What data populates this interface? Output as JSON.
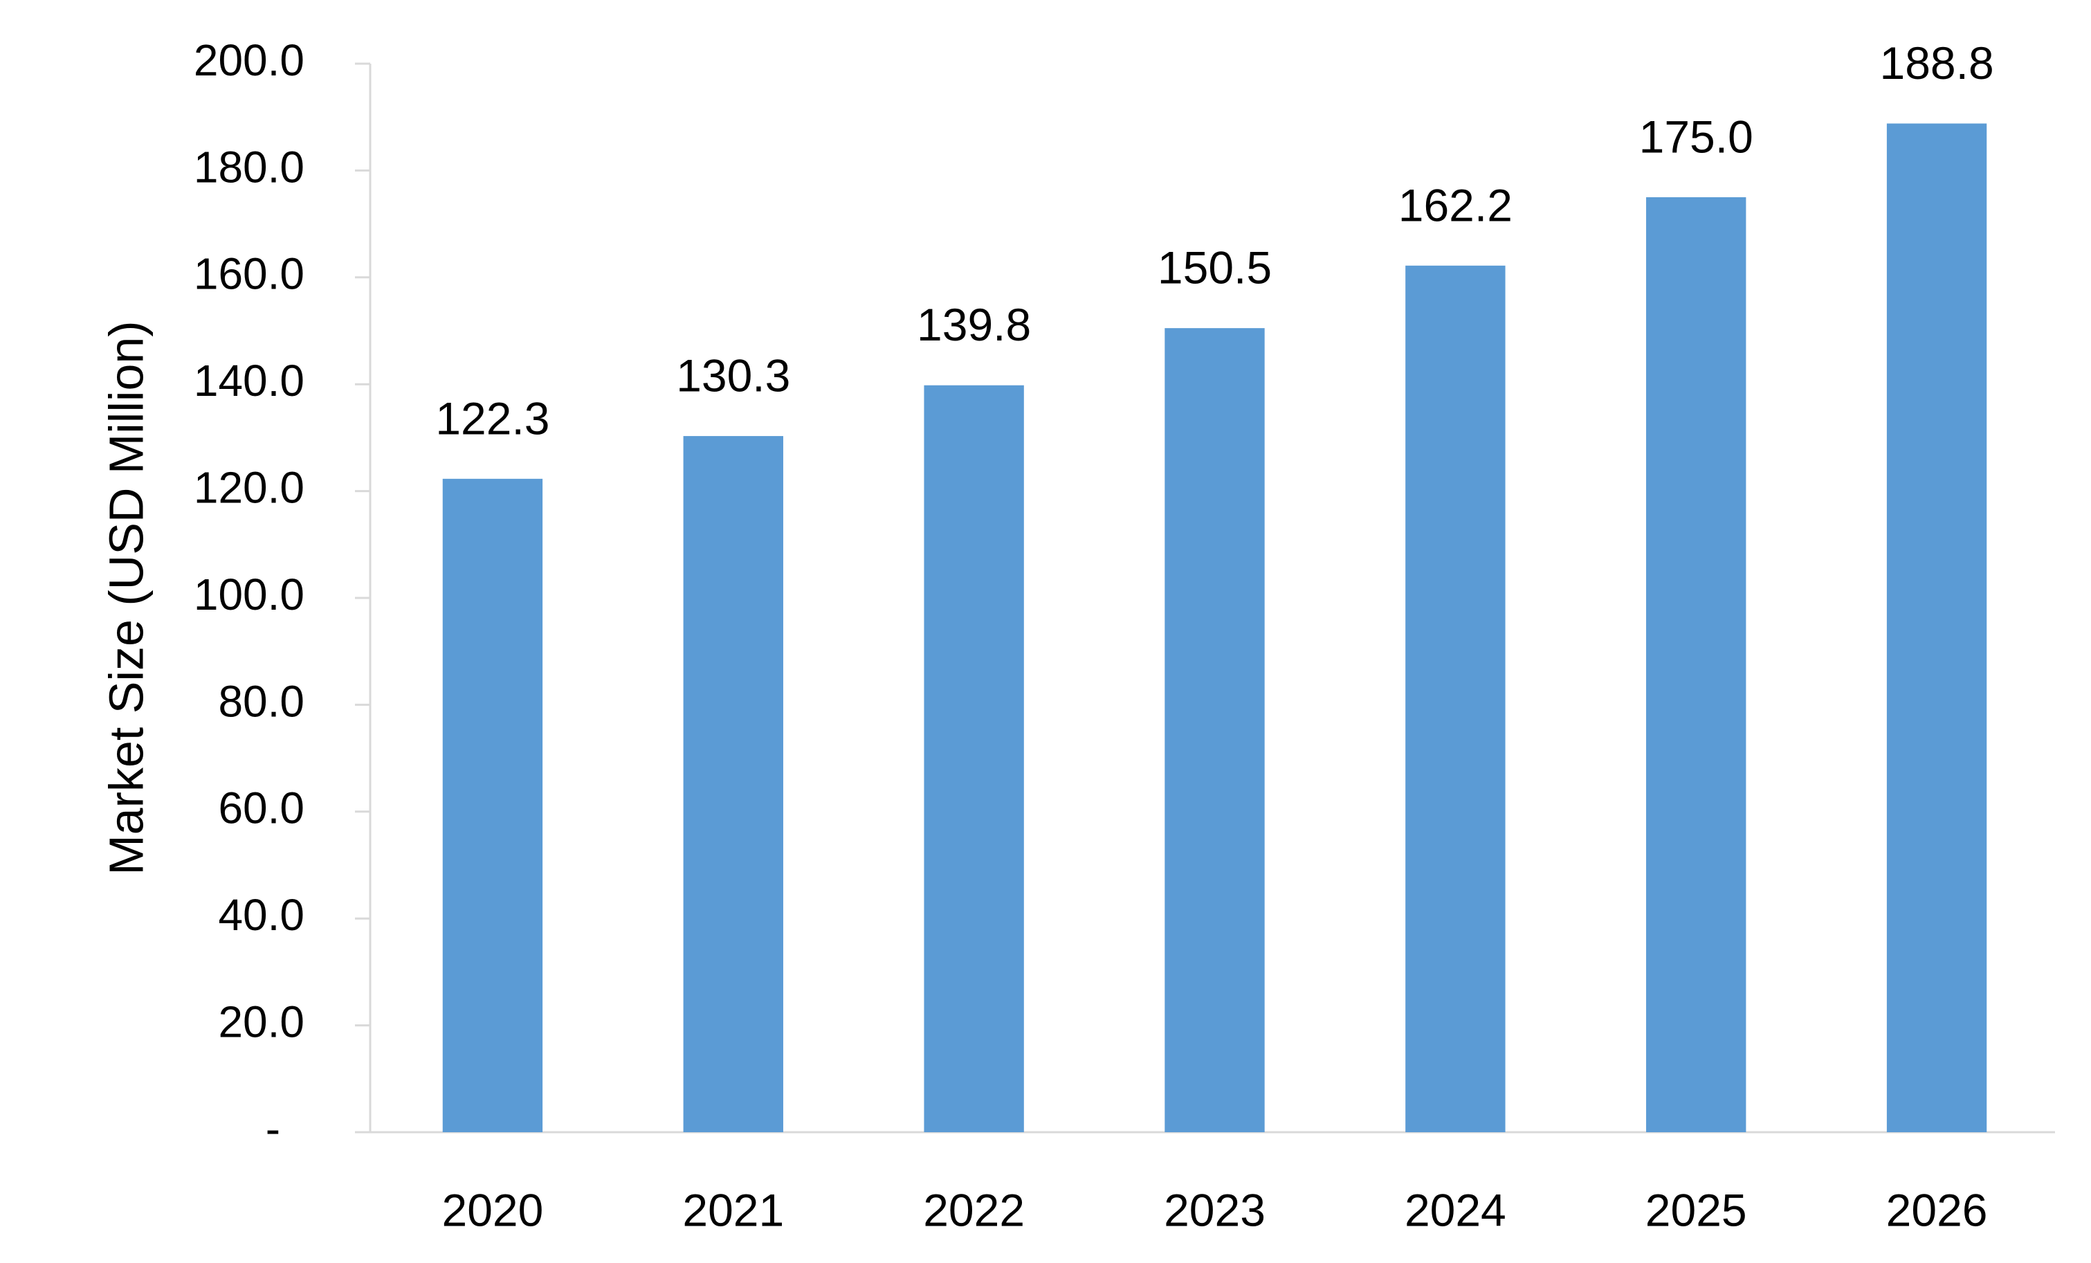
{
  "chart_data": {
    "type": "bar",
    "title": "",
    "xlabel": "",
    "ylabel": "Market Size (USD Million)",
    "categories": [
      "2020",
      "2021",
      "2022",
      "2023",
      "2024",
      "2025",
      "2026"
    ],
    "series": [
      {
        "values": [
          122.3,
          130.3,
          139.8,
          150.5,
          162.2,
          175.0,
          188.8
        ],
        "color": "#5B9BD5"
      }
    ],
    "data_labels": [
      "122.3",
      "130.3",
      "139.8",
      "150.5",
      "162.2",
      "175.0",
      "188.8"
    ],
    "ylim": [
      0,
      200
    ],
    "yticks": [
      0,
      20,
      40,
      60,
      80,
      100,
      120,
      140,
      160,
      180,
      200
    ],
    "ytick_labels": [
      "-",
      "20.0",
      "40.0",
      "60.0",
      "80.0",
      "100.0",
      "120.0",
      "140.0",
      "160.0",
      "180.0",
      "200.0"
    ],
    "grid": false,
    "legend": "none",
    "axis_color": "#D9D9D9"
  }
}
